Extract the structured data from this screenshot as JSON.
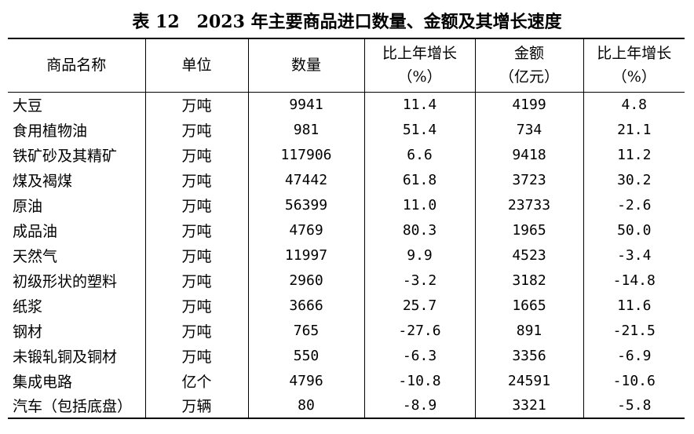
{
  "title": "表 12　2023 年主要商品进口数量、金额及其增长速度",
  "headers": {
    "name": "商品名称",
    "unit": "单位",
    "quantity": "数量",
    "qty_growth_line1": "比上年增长",
    "qty_growth_line2": "（%）",
    "amount_line1": "金额",
    "amount_line2": "（亿元）",
    "amt_growth_line1": "比上年增长",
    "amt_growth_line2": "（%）"
  },
  "rows": [
    {
      "name": "大豆",
      "unit": "万吨",
      "quantity": "9941",
      "qty_growth": "11.4",
      "amount": "4199",
      "amt_growth": "4.8"
    },
    {
      "name": "食用植物油",
      "unit": "万吨",
      "quantity": "981",
      "qty_growth": "51.4",
      "amount": "734",
      "amt_growth": "21.1"
    },
    {
      "name": "铁矿砂及其精矿",
      "unit": "万吨",
      "quantity": "117906",
      "qty_growth": "6.6",
      "amount": "9418",
      "amt_growth": "11.2"
    },
    {
      "name": "煤及褐煤",
      "unit": "万吨",
      "quantity": "47442",
      "qty_growth": "61.8",
      "amount": "3723",
      "amt_growth": "30.2"
    },
    {
      "name": "原油",
      "unit": "万吨",
      "quantity": "56399",
      "qty_growth": "11.0",
      "amount": "23733",
      "amt_growth": "-2.6"
    },
    {
      "name": "成品油",
      "unit": "万吨",
      "quantity": "4769",
      "qty_growth": "80.3",
      "amount": "1965",
      "amt_growth": "50.0"
    },
    {
      "name": "天然气",
      "unit": "万吨",
      "quantity": "11997",
      "qty_growth": "9.9",
      "amount": "4523",
      "amt_growth": "-3.4"
    },
    {
      "name": "初级形状的塑料",
      "unit": "万吨",
      "quantity": "2960",
      "qty_growth": "-3.2",
      "amount": "3182",
      "amt_growth": "-14.8"
    },
    {
      "name": "纸浆",
      "unit": "万吨",
      "quantity": "3666",
      "qty_growth": "25.7",
      "amount": "1665",
      "amt_growth": "11.6"
    },
    {
      "name": "钢材",
      "unit": "万吨",
      "quantity": "765",
      "qty_growth": "-27.6",
      "amount": "891",
      "amt_growth": "-21.5"
    },
    {
      "name": "未锻轧铜及铜材",
      "unit": "万吨",
      "quantity": "550",
      "qty_growth": "-6.3",
      "amount": "3356",
      "amt_growth": "-6.9"
    },
    {
      "name": "集成电路",
      "unit": "亿个",
      "quantity": "4796",
      "qty_growth": "-10.8",
      "amount": "24591",
      "amt_growth": "-10.6"
    },
    {
      "name": "汽车（包括底盘）",
      "unit": "万辆",
      "quantity": "80",
      "qty_growth": "-8.9",
      "amount": "3321",
      "amt_growth": "-5.8"
    }
  ]
}
